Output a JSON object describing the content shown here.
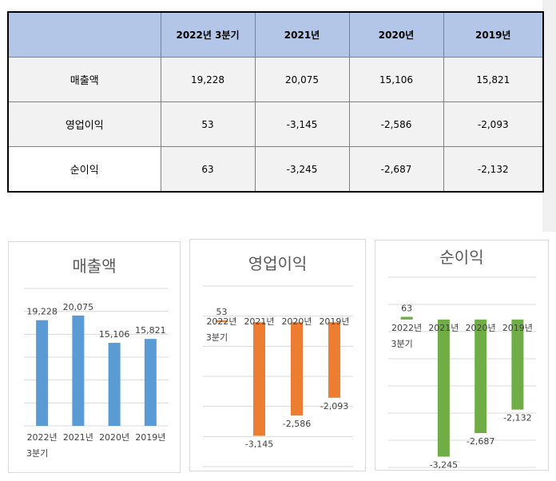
{
  "table": {
    "headers": [
      "",
      "2022년 3분기",
      "2021년",
      "2020년",
      "2019년"
    ],
    "rows": [
      {
        "label": "매출액",
        "values": [
          "19,228",
          "20,075",
          "15,106",
          "15,821"
        ]
      },
      {
        "label": "영업이익",
        "values": [
          "53",
          "-3,145",
          "-2,586",
          "-2,093"
        ]
      },
      {
        "label": "순이익",
        "values": [
          "63",
          "-3,245",
          "-2,687",
          "-2,132"
        ]
      }
    ]
  },
  "chart_data": [
    {
      "type": "bar",
      "title": "매출액",
      "categories": [
        "2022년\n3분기",
        "2021년",
        "2020년",
        "2019년"
      ],
      "values": [
        19228,
        20075,
        15106,
        15821
      ],
      "labels": [
        "19,228",
        "20,075",
        "15,106",
        "15,821"
      ],
      "color": "#5b9bd5",
      "ylim": [
        0,
        25000
      ],
      "grid": true
    },
    {
      "type": "bar",
      "title": "영업이익",
      "categories": [
        "2022년\n3분기",
        "2021년",
        "2020년",
        "2019년"
      ],
      "values": [
        53,
        -3145,
        -2586,
        -2093
      ],
      "labels": [
        "53",
        "-3,145",
        "-2,586",
        "-2,093"
      ],
      "color": "#ed7d31",
      "ylim": [
        -4000,
        1000
      ],
      "grid": true
    },
    {
      "type": "bar",
      "title": "순이익",
      "categories": [
        "2022년\n3분기",
        "2021년",
        "2020년",
        "2019년"
      ],
      "values": [
        63,
        -3245,
        -2687,
        -2132
      ],
      "labels": [
        "63",
        "-3,245",
        "-2,687",
        "-2,132"
      ],
      "color": "#70ad47",
      "ylim": [
        -3500,
        1000
      ],
      "grid": true
    }
  ]
}
